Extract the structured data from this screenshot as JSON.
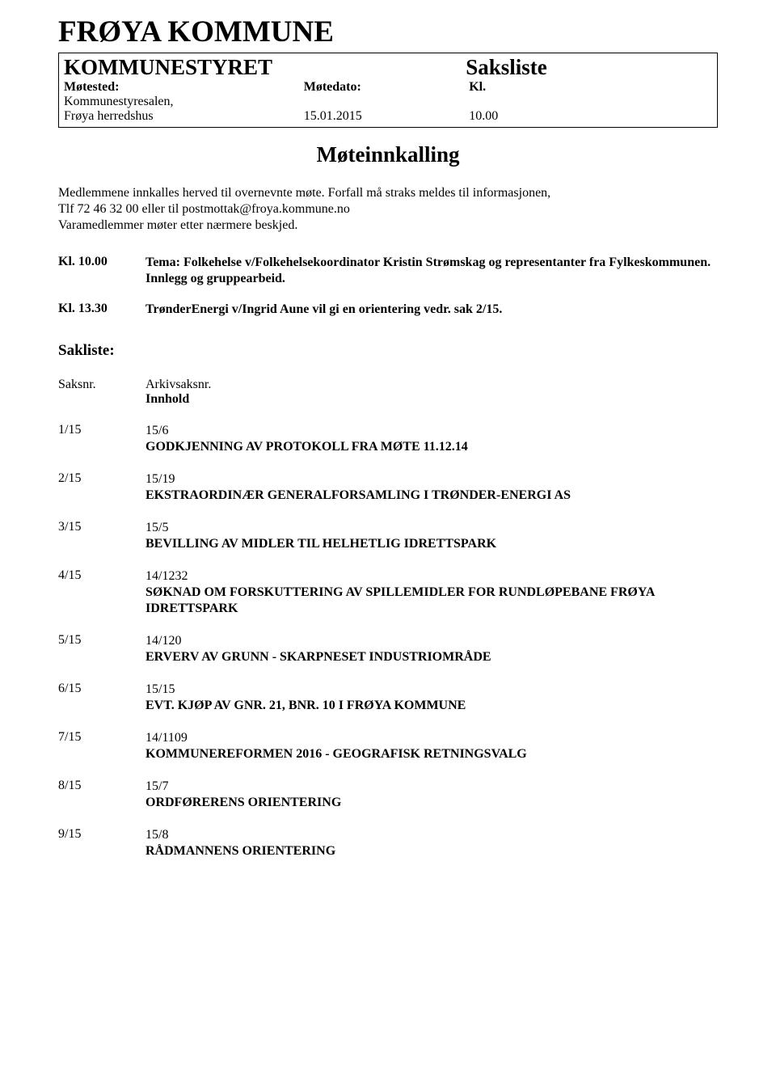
{
  "org_title": "FRØYA KOMMUNE",
  "header": {
    "left_title": "KOMMUNESTYRET",
    "right_title": "Saksliste",
    "labels": {
      "sted": "Møtested:",
      "dato": "Møtedato:",
      "kl": "Kl."
    },
    "values": {
      "sted": "Kommunestyresalen,\nFrøya herredshus",
      "dato": "15.01.2015",
      "kl": "10.00"
    }
  },
  "meeting_call": "Møteinnkalling",
  "intro": "Medlemmene innkalles herved til overnevnte møte. Forfall må straks meldes til informasjonen,\nTlf 72 46 32 00 eller til postmottak@froya.kommune.no\nVaramedlemmer møter etter nærmere beskjed.",
  "agenda": [
    {
      "time": "Kl. 10.00",
      "desc": "Tema: Folkehelse v/Folkehelsekoordinator Kristin Strømskag og representanter fra Fylkeskommunen. Innlegg og gruppearbeid."
    },
    {
      "time": "Kl. 13.30",
      "desc": "TrønderEnergi v/Ingrid Aune vil gi en orientering vedr. sak 2/15."
    }
  ],
  "sakliste_title": "Sakliste:",
  "col_headers": {
    "saksnr": "Saksnr.",
    "arkiv": "Arkivsaksnr.",
    "innhold": "Innhold"
  },
  "items": [
    {
      "num": "1/15",
      "arkiv": "15/6",
      "title": "GODKJENNING AV PROTOKOLL FRA MØTE 11.12.14"
    },
    {
      "num": "2/15",
      "arkiv": "15/19",
      "title": "EKSTRAORDINÆR GENERALFORSAMLING I TRØNDER-ENERGI AS"
    },
    {
      "num": "3/15",
      "arkiv": "15/5",
      "title": "BEVILLING AV MIDLER TIL HELHETLIG IDRETTSPARK"
    },
    {
      "num": "4/15",
      "arkiv": "14/1232",
      "title": "SØKNAD OM FORSKUTTERING AV SPILLEMIDLER FOR RUNDLØPEBANE FRØYA IDRETTSPARK"
    },
    {
      "num": "5/15",
      "arkiv": "14/120",
      "title": "ERVERV AV GRUNN - SKARPNESET INDUSTRIOMRÅDE"
    },
    {
      "num": "6/15",
      "arkiv": "15/15",
      "title": "EVT. KJØP AV GNR. 21, BNR. 10 I FRØYA KOMMUNE"
    },
    {
      "num": "7/15",
      "arkiv": "14/1109",
      "title": "KOMMUNEREFORMEN 2016 - GEOGRAFISK RETNINGSVALG"
    },
    {
      "num": "8/15",
      "arkiv": "15/7",
      "title": "ORDFØRERENS ORIENTERING"
    },
    {
      "num": "9/15",
      "arkiv": "15/8",
      "title": "RÅDMANNENS ORIENTERING"
    }
  ]
}
